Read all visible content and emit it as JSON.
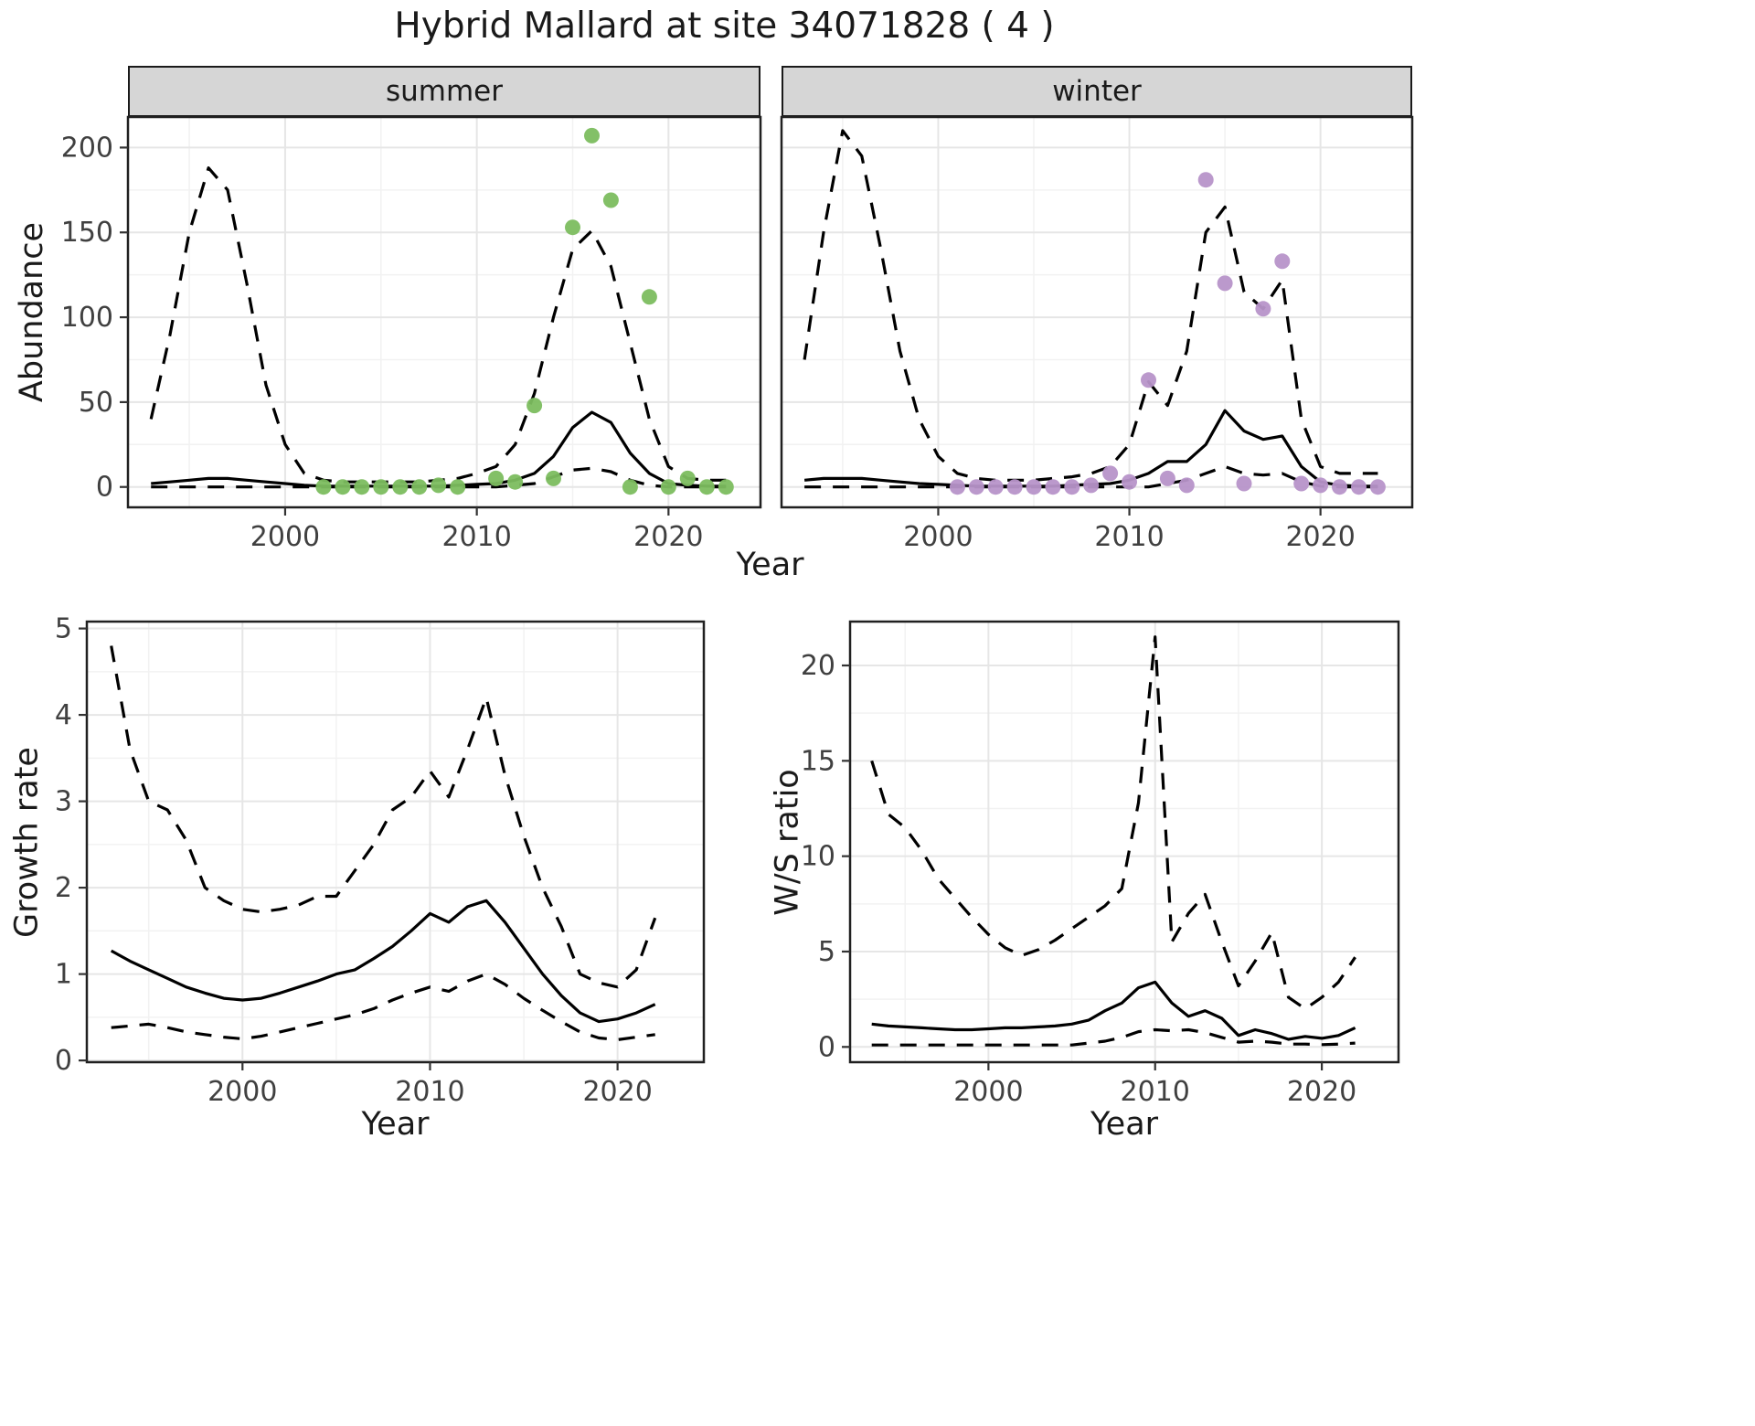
{
  "title": "Hybrid Mallard at site 34071828 ( 4 )",
  "facets": {
    "summer": "summer",
    "winter": "winter"
  },
  "axis_titles": {
    "abundance": "Abundance",
    "year_top": "Year",
    "growth": "Growth rate",
    "ws": "W/S ratio",
    "year_growth": "Year",
    "year_ws": "Year"
  },
  "colors": {
    "summer_point": "#7cbd5f",
    "winter_point": "#b793c9",
    "line": "#000000",
    "grid_major": "#e6e6e6",
    "grid_minor": "#f2f2f2",
    "panel_border": "#202020",
    "strip_bg": "#d6d6d6",
    "tick_label": "#404040"
  },
  "chart_data": [
    {
      "id": "abundance-summer",
      "type": "line",
      "facet": "summer",
      "xlabel": "Year",
      "ylabel": "Abundance",
      "xlim": [
        1991.8,
        2024.8
      ],
      "ylim": [
        -12,
        218
      ],
      "xticks": [
        2000,
        2010,
        2020
      ],
      "yticks": [
        0,
        50,
        100,
        150,
        200
      ],
      "x": [
        1993,
        1994,
        1995,
        1996,
        1997,
        1998,
        1999,
        2000,
        2001,
        2002,
        2003,
        2004,
        2005,
        2006,
        2007,
        2008,
        2009,
        2010,
        2011,
        2012,
        2013,
        2014,
        2015,
        2016,
        2017,
        2018,
        2019,
        2020,
        2021,
        2022,
        2023
      ],
      "series": [
        {
          "name": "mean",
          "style": "solid",
          "values": [
            2,
            3,
            4,
            5,
            5,
            4,
            3,
            2,
            1,
            0.5,
            0.5,
            0.5,
            0.5,
            0.5,
            0.5,
            0.5,
            1,
            1.5,
            2,
            4,
            8,
            18,
            35,
            44,
            38,
            20,
            8,
            2,
            1,
            0.5,
            0.5
          ]
        },
        {
          "name": "upper_ci",
          "style": "dashed",
          "values": [
            40,
            90,
            150,
            188,
            175,
            120,
            60,
            25,
            8,
            4,
            3,
            3,
            3,
            3,
            3,
            4,
            5,
            8,
            12,
            25,
            55,
            100,
            140,
            151,
            130,
            85,
            40,
            12,
            5,
            4,
            4
          ]
        },
        {
          "name": "lower_ci",
          "style": "dashed",
          "values": [
            0,
            0,
            0,
            0,
            0,
            0,
            0,
            0,
            0,
            0,
            0,
            0,
            0,
            0,
            0,
            0,
            0,
            0,
            0,
            1,
            2,
            6,
            10,
            11,
            9,
            4,
            1,
            0,
            0,
            0,
            0
          ]
        }
      ],
      "points": {
        "name": "summer-observations",
        "color_key": "summer_point",
        "x": [
          2002,
          2003,
          2004,
          2005,
          2006,
          2007,
          2008,
          2009,
          2011,
          2012,
          2013,
          2014,
          2015,
          2016,
          2017,
          2018,
          2019,
          2020,
          2021,
          2022,
          2023
        ],
        "y": [
          0,
          0,
          0,
          0,
          0,
          0,
          1,
          0,
          5,
          3,
          48,
          5,
          153,
          207,
          169,
          0,
          112,
          0,
          5,
          0,
          0
        ]
      }
    },
    {
      "id": "abundance-winter",
      "type": "line",
      "facet": "winter",
      "xlabel": "Year",
      "ylabel": "Abundance",
      "xlim": [
        1991.8,
        2024.8
      ],
      "ylim": [
        -12,
        218
      ],
      "xticks": [
        2000,
        2010,
        2020
      ],
      "yticks": [
        0,
        50,
        100,
        150,
        200
      ],
      "x": [
        1993,
        1994,
        1995,
        1996,
        1997,
        1998,
        1999,
        2000,
        2001,
        2002,
        2003,
        2004,
        2005,
        2006,
        2007,
        2008,
        2009,
        2010,
        2011,
        2012,
        2013,
        2014,
        2015,
        2016,
        2017,
        2018,
        2019,
        2020,
        2021,
        2022,
        2023
      ],
      "series": [
        {
          "name": "mean",
          "style": "solid",
          "values": [
            4,
            5,
            5,
            5,
            4,
            3,
            2,
            1.5,
            1,
            0.5,
            0.5,
            0.5,
            0.5,
            0.5,
            1,
            1.5,
            2,
            4,
            8,
            15,
            15,
            25,
            45,
            33,
            28,
            30,
            12,
            3,
            1,
            0.5,
            0.5
          ]
        },
        {
          "name": "upper_ci",
          "style": "dashed",
          "values": [
            75,
            150,
            210,
            195,
            140,
            80,
            40,
            18,
            8,
            5,
            4,
            4,
            4,
            5,
            6,
            8,
            12,
            25,
            62,
            48,
            80,
            150,
            165,
            115,
            105,
            122,
            40,
            12,
            8,
            8,
            8
          ]
        },
        {
          "name": "lower_ci",
          "style": "dashed",
          "values": [
            0,
            0,
            0,
            0,
            0,
            0,
            0,
            0,
            0,
            0,
            0,
            0,
            0,
            0,
            0,
            0,
            0,
            0,
            0,
            2,
            4,
            8,
            12,
            8,
            7,
            8,
            3,
            0.5,
            0,
            0,
            0
          ]
        }
      ],
      "points": {
        "name": "winter-observations",
        "color_key": "winter_point",
        "x": [
          2001,
          2002,
          2003,
          2004,
          2005,
          2006,
          2007,
          2008,
          2009,
          2010,
          2011,
          2012,
          2013,
          2014,
          2015,
          2016,
          2017,
          2018,
          2019,
          2020,
          2021,
          2022,
          2023
        ],
        "y": [
          0,
          0,
          0,
          0,
          0,
          0,
          0,
          1,
          8,
          3,
          63,
          5,
          1,
          181,
          120,
          2,
          105,
          133,
          2,
          1,
          0,
          0,
          0
        ]
      }
    },
    {
      "id": "growth-rate",
      "type": "line",
      "xlabel": "Year",
      "ylabel": "Growth rate",
      "xlim": [
        1991.7,
        2024.6
      ],
      "ylim": [
        -0.02,
        5.08
      ],
      "xticks": [
        2000,
        2010,
        2020
      ],
      "yticks": [
        0,
        1,
        2,
        3,
        4,
        5
      ],
      "x": [
        1993,
        1994,
        1995,
        1996,
        1997,
        1998,
        1999,
        2000,
        2001,
        2002,
        2003,
        2004,
        2005,
        2006,
        2007,
        2008,
        2009,
        2010,
        2011,
        2012,
        2013,
        2014,
        2015,
        2016,
        2017,
        2018,
        2019,
        2020,
        2021,
        2022
      ],
      "series": [
        {
          "name": "mean",
          "style": "solid",
          "values": [
            1.27,
            1.15,
            1.05,
            0.95,
            0.85,
            0.78,
            0.72,
            0.7,
            0.72,
            0.78,
            0.85,
            0.92,
            1.0,
            1.05,
            1.18,
            1.32,
            1.5,
            1.7,
            1.6,
            1.78,
            1.85,
            1.6,
            1.3,
            1.0,
            0.75,
            0.55,
            0.45,
            0.48,
            0.55,
            0.65
          ]
        },
        {
          "name": "upper_ci",
          "style": "dashed",
          "values": [
            4.8,
            3.6,
            3.0,
            2.9,
            2.55,
            2.0,
            1.85,
            1.75,
            1.72,
            1.75,
            1.8,
            1.9,
            1.9,
            2.2,
            2.5,
            2.9,
            3.05,
            3.35,
            3.05,
            3.6,
            4.2,
            3.3,
            2.6,
            2.0,
            1.55,
            1.0,
            0.9,
            0.85,
            1.05,
            1.65
          ]
        },
        {
          "name": "lower_ci",
          "style": "dashed",
          "values": [
            0.38,
            0.4,
            0.42,
            0.38,
            0.33,
            0.3,
            0.27,
            0.25,
            0.28,
            0.33,
            0.38,
            0.43,
            0.48,
            0.53,
            0.6,
            0.7,
            0.78,
            0.85,
            0.8,
            0.92,
            1.0,
            0.88,
            0.72,
            0.58,
            0.45,
            0.33,
            0.26,
            0.24,
            0.27,
            0.3
          ]
        }
      ]
    },
    {
      "id": "ws-ratio",
      "type": "line",
      "xlabel": "Year",
      "ylabel": "W/S ratio",
      "xlim": [
        1991.7,
        2024.6
      ],
      "ylim": [
        -0.8,
        22.3
      ],
      "xticks": [
        2000,
        2010,
        2020
      ],
      "yticks": [
        0,
        5,
        10,
        15,
        20
      ],
      "x": [
        1993,
        1994,
        1995,
        1996,
        1997,
        1998,
        1999,
        2000,
        2001,
        2002,
        2003,
        2004,
        2005,
        2006,
        2007,
        2008,
        2009,
        2010,
        2011,
        2012,
        2013,
        2014,
        2015,
        2016,
        2017,
        2018,
        2019,
        2020,
        2021,
        2022
      ],
      "series": [
        {
          "name": "mean",
          "style": "solid",
          "values": [
            1.2,
            1.1,
            1.05,
            1.0,
            0.95,
            0.9,
            0.9,
            0.95,
            1.0,
            1.0,
            1.05,
            1.1,
            1.2,
            1.4,
            1.9,
            2.3,
            3.1,
            3.4,
            2.3,
            1.6,
            1.9,
            1.5,
            0.6,
            0.9,
            0.7,
            0.4,
            0.55,
            0.45,
            0.6,
            1.0
          ]
        },
        {
          "name": "upper_ci",
          "style": "dashed",
          "values": [
            15,
            12.2,
            11.5,
            10.3,
            8.8,
            7.8,
            6.8,
            5.9,
            5.2,
            4.8,
            5.1,
            5.6,
            6.2,
            6.8,
            7.4,
            8.3,
            12.8,
            21.5,
            5.5,
            7.0,
            8.0,
            5.5,
            3.2,
            4.5,
            6.0,
            2.6,
            2.0,
            2.6,
            3.4,
            4.7
          ]
        },
        {
          "name": "lower_ci",
          "style": "dashed",
          "values": [
            0.1,
            0.1,
            0.1,
            0.1,
            0.1,
            0.1,
            0.1,
            0.1,
            0.1,
            0.1,
            0.1,
            0.1,
            0.1,
            0.2,
            0.3,
            0.5,
            0.8,
            0.9,
            0.85,
            0.9,
            0.75,
            0.5,
            0.25,
            0.3,
            0.25,
            0.15,
            0.15,
            0.12,
            0.15,
            0.2
          ]
        }
      ]
    }
  ]
}
